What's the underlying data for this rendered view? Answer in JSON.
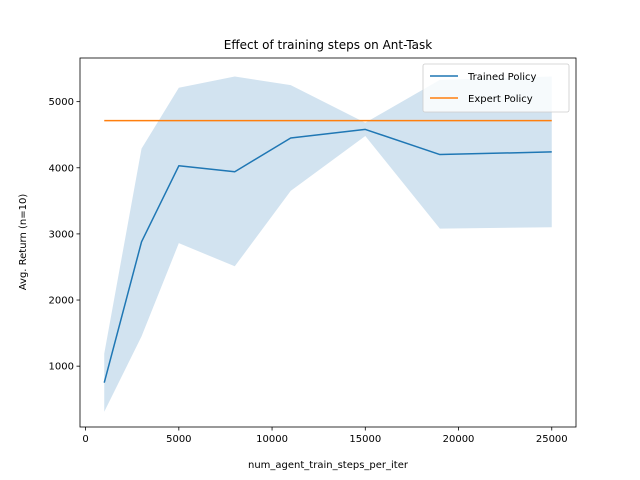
{
  "chart_data": {
    "type": "line",
    "title": "Effect of training steps on Ant-Task",
    "xlabel": "num_agent_train_steps_per_iter",
    "ylabel": "Avg. Return (n=10)",
    "xlim": [
      -300,
      26300
    ],
    "ylim": [
      80,
      5660
    ],
    "xticks": [
      0,
      5000,
      10000,
      15000,
      20000,
      25000
    ],
    "yticks": [
      1000,
      2000,
      3000,
      4000,
      5000
    ],
    "grid": false,
    "legend_position": "top-right",
    "series": [
      {
        "name": "Trained Policy",
        "color": "#1f77b4",
        "x": [
          1000,
          3000,
          5000,
          8000,
          11000,
          15000,
          19000,
          25000
        ],
        "y": [
          750,
          2880,
          4030,
          3940,
          4450,
          4580,
          4200,
          4240
        ],
        "band_upper": [
          1190,
          4290,
          5210,
          5380,
          5250,
          4680,
          5330,
          5380
        ],
        "band_lower": [
          310,
          1450,
          2860,
          2510,
          3650,
          4480,
          3080,
          3100
        ],
        "band_color": "#d2e3f0"
      },
      {
        "name": "Expert Policy",
        "color": "#ff7f0e",
        "x": [
          1000,
          25000
        ],
        "y": [
          4713,
          4713
        ]
      }
    ]
  }
}
